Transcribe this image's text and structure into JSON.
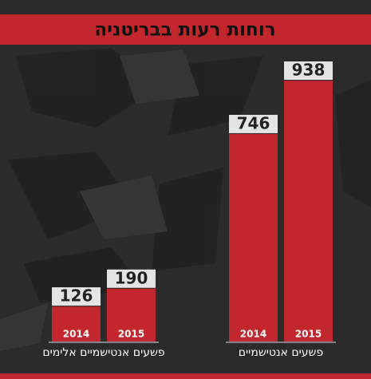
{
  "chart_data": {
    "type": "bar",
    "title": "רוחות רעות בבריטניה",
    "categories": [
      "פשעים אנטישמיים אלימים",
      "פשעים אנטישמיים"
    ],
    "series": [
      {
        "name": "2014",
        "color": "#c1272d",
        "values": [
          126,
          746
        ]
      },
      {
        "name": "2015",
        "color": "#c1272d",
        "values": [
          190,
          938
        ]
      }
    ]
  }
}
